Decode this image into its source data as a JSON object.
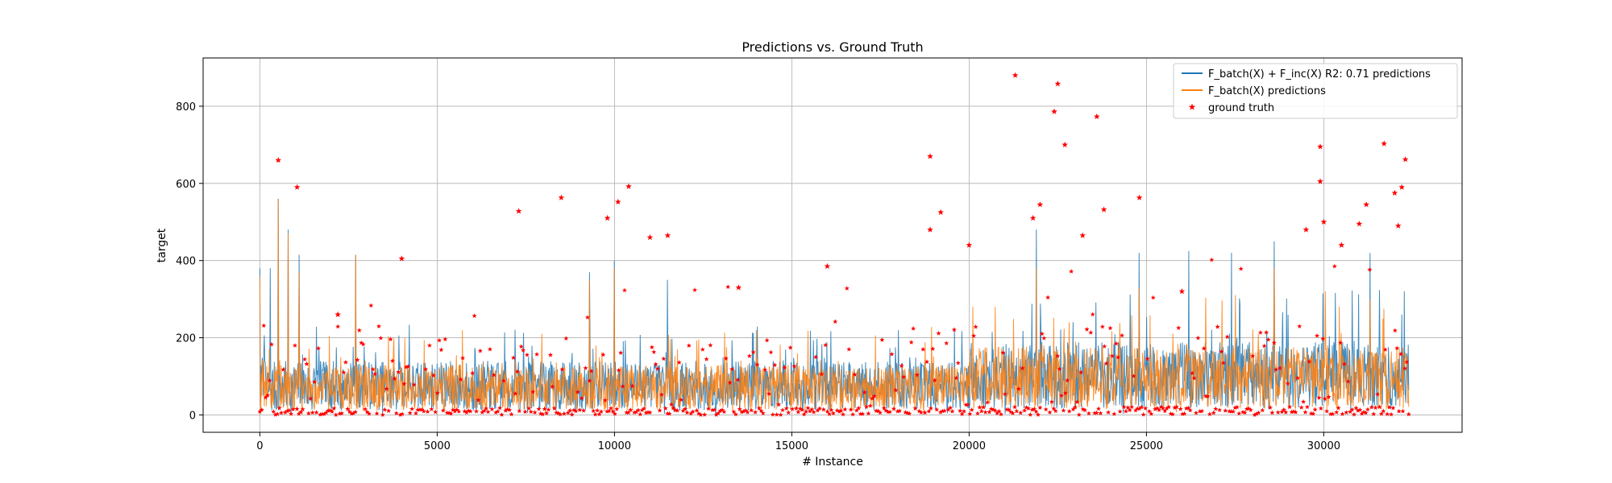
{
  "chart_data": {
    "type": "line",
    "title": "Predictions vs. Ground Truth",
    "xlabel": "# Instance",
    "ylabel": "target",
    "xlim": [
      -1600,
      33900
    ],
    "ylim": [
      -45,
      925
    ],
    "xticks": [
      0,
      5000,
      10000,
      15000,
      20000,
      25000,
      30000
    ],
    "yticks": [
      0,
      200,
      400,
      600,
      800
    ],
    "grid": true,
    "legend_position": "top-right",
    "n_instances": 32400,
    "series": [
      {
        "name": "F_batch(X) + F_inc(X) R2: 0.71  predictions",
        "kind": "line",
        "color": "#1f77b4",
        "baseline": 70,
        "peaks": [
          {
            "x": 0,
            "y": 380
          },
          {
            "x": 300,
            "y": 380
          },
          {
            "x": 520,
            "y": 560
          },
          {
            "x": 800,
            "y": 480
          },
          {
            "x": 1100,
            "y": 415
          },
          {
            "x": 2700,
            "y": 415
          },
          {
            "x": 9300,
            "y": 370
          },
          {
            "x": 10000,
            "y": 400
          },
          {
            "x": 11500,
            "y": 350
          },
          {
            "x": 21900,
            "y": 480
          },
          {
            "x": 24800,
            "y": 420
          },
          {
            "x": 26200,
            "y": 425
          },
          {
            "x": 27400,
            "y": 420
          },
          {
            "x": 28600,
            "y": 450
          },
          {
            "x": 31300,
            "y": 420
          },
          {
            "x": 32200,
            "y": 260
          }
        ]
      },
      {
        "name": "F_batch(X) predictions",
        "kind": "line",
        "color": "#ff7f0e",
        "baseline": 65,
        "peaks": [
          {
            "x": 0,
            "y": 360
          },
          {
            "x": 520,
            "y": 560
          },
          {
            "x": 800,
            "y": 470
          },
          {
            "x": 1100,
            "y": 370
          },
          {
            "x": 2700,
            "y": 415
          },
          {
            "x": 9300,
            "y": 350
          },
          {
            "x": 10000,
            "y": 380
          },
          {
            "x": 21900,
            "y": 380
          },
          {
            "x": 24800,
            "y": 330
          },
          {
            "x": 28600,
            "y": 380
          },
          {
            "x": 31300,
            "y": 300
          }
        ]
      },
      {
        "name": "ground truth",
        "kind": "scatter",
        "marker": "star",
        "color": "#ff0000",
        "baseline": 60,
        "points": [
          {
            "x": 520,
            "y": 660
          },
          {
            "x": 1050,
            "y": 590
          },
          {
            "x": 2200,
            "y": 260
          },
          {
            "x": 4000,
            "y": 405
          },
          {
            "x": 7300,
            "y": 528
          },
          {
            "x": 8500,
            "y": 563
          },
          {
            "x": 9800,
            "y": 510
          },
          {
            "x": 10100,
            "y": 552
          },
          {
            "x": 10400,
            "y": 592
          },
          {
            "x": 11000,
            "y": 460
          },
          {
            "x": 11500,
            "y": 465
          },
          {
            "x": 13500,
            "y": 330
          },
          {
            "x": 16000,
            "y": 385
          },
          {
            "x": 18900,
            "y": 670
          },
          {
            "x": 18900,
            "y": 480
          },
          {
            "x": 19200,
            "y": 525
          },
          {
            "x": 20000,
            "y": 440
          },
          {
            "x": 21300,
            "y": 880
          },
          {
            "x": 21800,
            "y": 510
          },
          {
            "x": 22000,
            "y": 545
          },
          {
            "x": 22400,
            "y": 786
          },
          {
            "x": 22500,
            "y": 858
          },
          {
            "x": 22700,
            "y": 700
          },
          {
            "x": 23200,
            "y": 465
          },
          {
            "x": 23600,
            "y": 773
          },
          {
            "x": 23800,
            "y": 532
          },
          {
            "x": 24800,
            "y": 563
          },
          {
            "x": 26000,
            "y": 320
          },
          {
            "x": 29500,
            "y": 480
          },
          {
            "x": 29900,
            "y": 695
          },
          {
            "x": 29900,
            "y": 605
          },
          {
            "x": 30000,
            "y": 500
          },
          {
            "x": 30500,
            "y": 440
          },
          {
            "x": 31000,
            "y": 495
          },
          {
            "x": 31200,
            "y": 545
          },
          {
            "x": 31700,
            "y": 703
          },
          {
            "x": 32000,
            "y": 575
          },
          {
            "x": 32100,
            "y": 490
          },
          {
            "x": 32200,
            "y": 590
          },
          {
            "x": 32300,
            "y": 662
          }
        ]
      }
    ]
  }
}
